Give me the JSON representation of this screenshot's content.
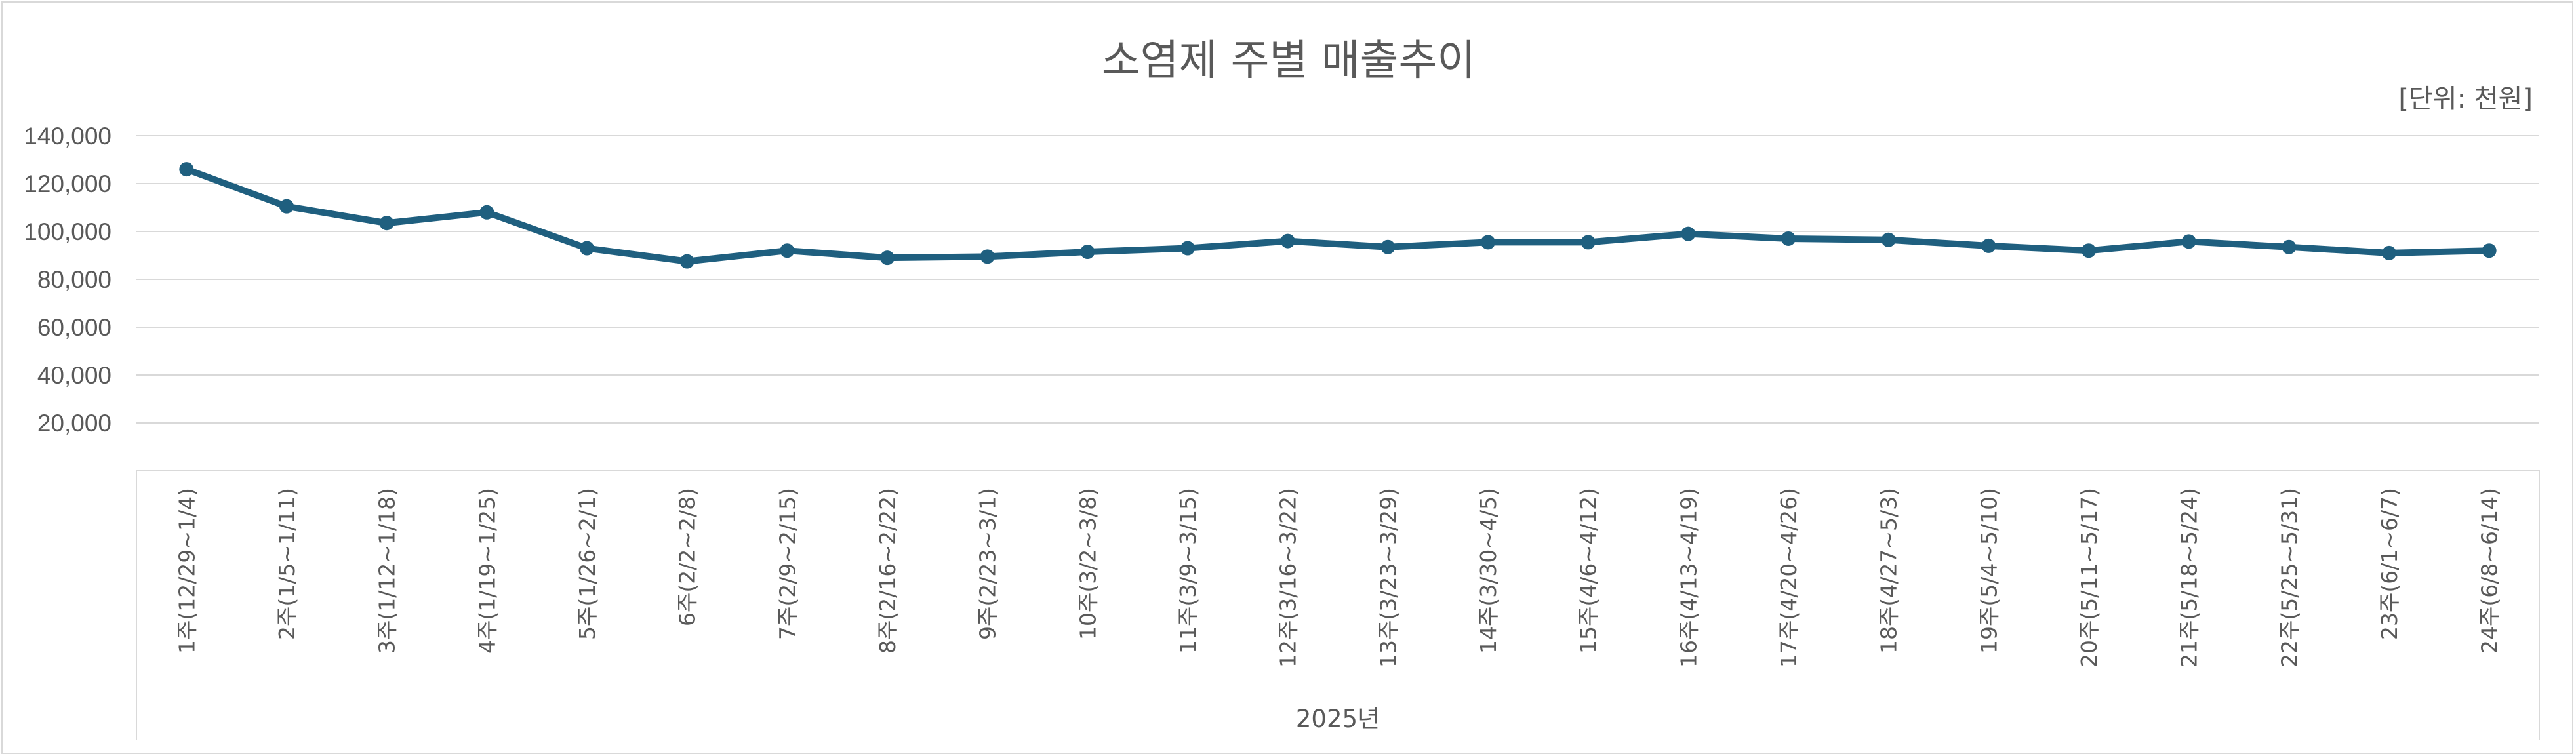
{
  "chart_data": {
    "type": "line",
    "title": "소염제 주별 매출추이",
    "unit_label": "[단위: 천원]",
    "xlabel": "2025년",
    "ylabel": "",
    "ylim": [
      0,
      140000
    ],
    "yticks": [
      "140,000",
      "120,000",
      "100,000",
      "80,000",
      "60,000",
      "40,000",
      "20,000"
    ],
    "ytick_values": [
      140000,
      120000,
      100000,
      80000,
      60000,
      40000,
      20000
    ],
    "grid": true,
    "legend": "none",
    "categories": [
      "1주(12/29~1/4)",
      "2주(1/5~1/11)",
      "3주(1/12~1/18)",
      "4주(1/19~1/25)",
      "5주(1/26~2/1)",
      "6주(2/2~2/8)",
      "7주(2/9~2/15)",
      "8주(2/16~2/22)",
      "9주(2/23~3/1)",
      "10주(3/2~3/8)",
      "11주(3/9~3/15)",
      "12주(3/16~3/22)",
      "13주(3/23~3/29)",
      "14주(3/30~4/5)",
      "15주(4/6~4/12)",
      "16주(4/13~4/19)",
      "17주(4/20~4/26)",
      "18주(4/27~5/3)",
      "19주(5/4~5/10)",
      "20주(5/11~5/17)",
      "21주(5/18~5/24)",
      "22주(5/25~5/31)",
      "23주(6/1~6/7)",
      "24주(6/8~6/14)"
    ],
    "series": [
      {
        "color": "#1f5f7f",
        "values": [
          126000,
          110500,
          103500,
          108000,
          93000,
          87500,
          92000,
          89000,
          89500,
          91500,
          93000,
          96000,
          93500,
          95500,
          95500,
          99000,
          97000,
          96500,
          94000,
          92000,
          95800,
          93500,
          91000,
          92000
        ]
      }
    ]
  }
}
